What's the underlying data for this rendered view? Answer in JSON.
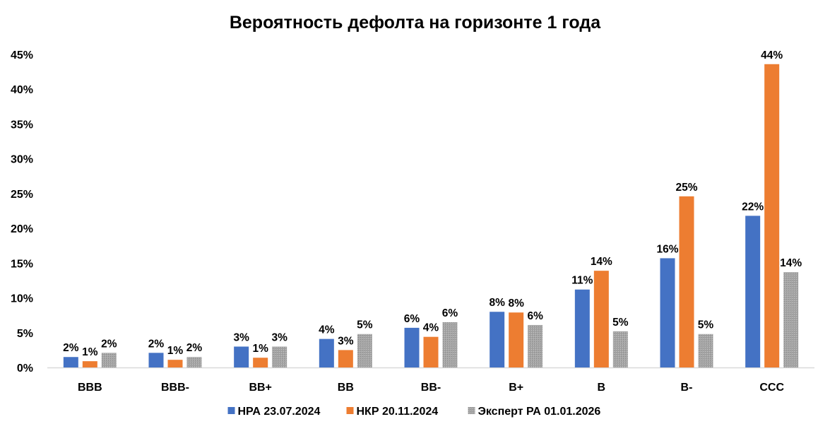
{
  "chart_data": {
    "type": "bar",
    "title": "Вероятность дефолта на горизонте 1 года",
    "xlabel": "",
    "ylabel": "",
    "ylim": [
      0,
      45
    ],
    "yticks": [
      0,
      5,
      10,
      15,
      20,
      25,
      30,
      35,
      40,
      45
    ],
    "ytick_labels": [
      "0%",
      "5%",
      "10%",
      "15%",
      "20%",
      "25%",
      "30%",
      "35%",
      "40%",
      "45%"
    ],
    "grid": false,
    "legend_position": "bottom",
    "categories": [
      "BBB",
      "BBB-",
      "BB+",
      "BB",
      "BB-",
      "B+",
      "B",
      "B-",
      "CCC"
    ],
    "series": [
      {
        "name": "НРА 23.07.2024",
        "color": "#4472C4",
        "pattern": "solid",
        "values": [
          1.5,
          2.1,
          3.0,
          4.1,
          5.7,
          8.0,
          11.2,
          15.7,
          21.8
        ],
        "labels": [
          "2%",
          "2%",
          "3%",
          "4%",
          "6%",
          "8%",
          "11%",
          "16%",
          "22%"
        ]
      },
      {
        "name": "НКР 20.11.2024",
        "color": "#ED7D31",
        "pattern": "solid",
        "values": [
          0.9,
          1.1,
          1.4,
          2.5,
          4.4,
          7.9,
          13.9,
          24.6,
          43.6
        ],
        "labels": [
          "1%",
          "1%",
          "1%",
          "3%",
          "4%",
          "8%",
          "14%",
          "25%",
          "44%"
        ]
      },
      {
        "name": "Эксперт РА 01.01.2026",
        "color": "#A5A5A5",
        "pattern": "dotted",
        "values": [
          2.1,
          1.5,
          3.0,
          4.8,
          6.5,
          6.1,
          5.2,
          4.8,
          13.7
        ],
        "labels": [
          "2%",
          "2%",
          "3%",
          "5%",
          "6%",
          "6%",
          "5%",
          "5%",
          "14%"
        ]
      }
    ]
  }
}
